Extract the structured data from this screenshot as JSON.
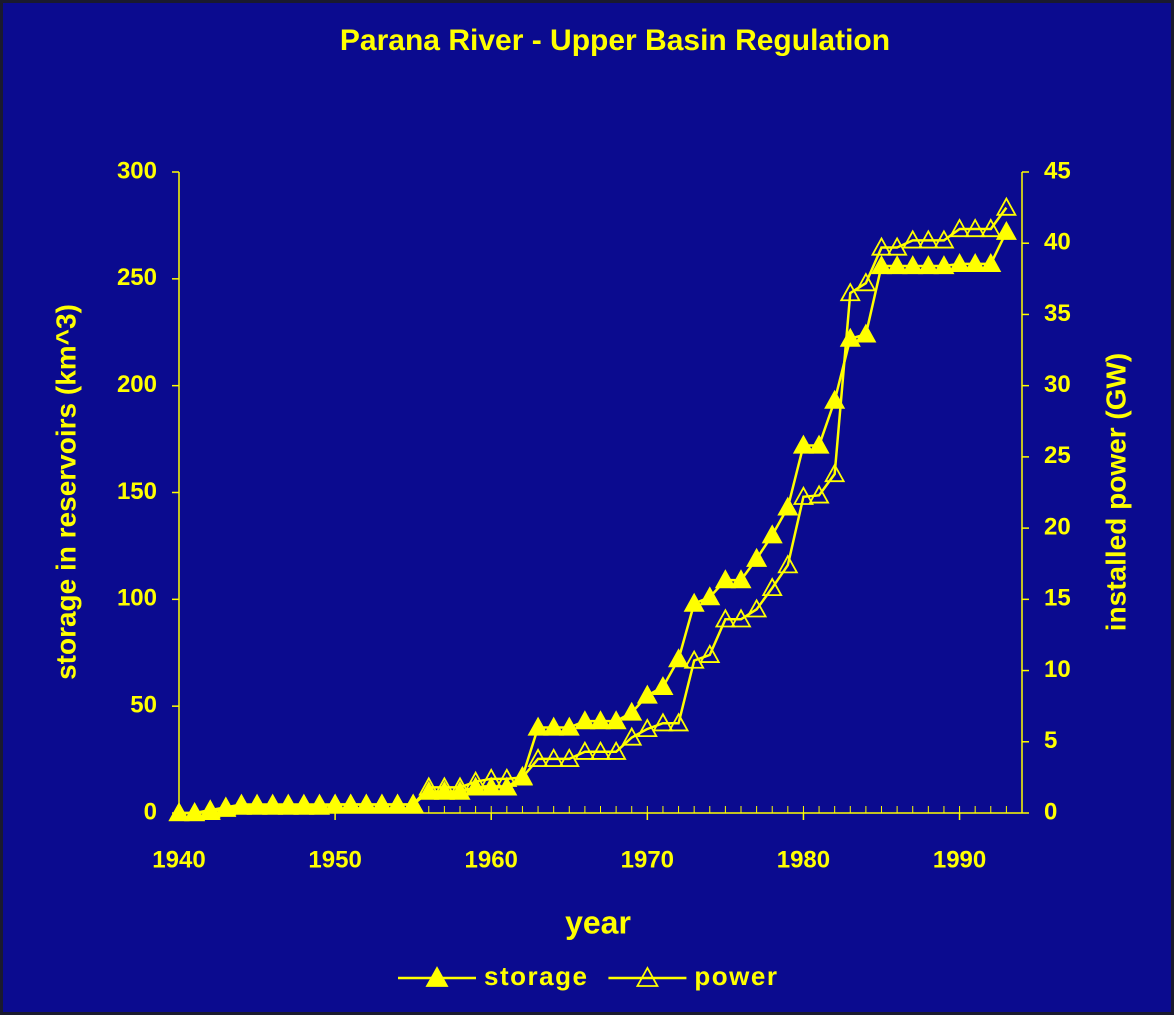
{
  "chart_data": {
    "type": "line",
    "title": "Parana River  -  Upper Basin Regulation",
    "x_label": "year",
    "y_label": "storage in reservoirs (km^3)",
    "y2_label": "installed power (GW)",
    "x": [
      1940,
      1941,
      1942,
      1943,
      1944,
      1945,
      1946,
      1947,
      1948,
      1949,
      1950,
      1951,
      1952,
      1953,
      1954,
      1955,
      1956,
      1957,
      1958,
      1959,
      1960,
      1961,
      1962,
      1963,
      1964,
      1965,
      1966,
      1967,
      1968,
      1969,
      1970,
      1971,
      1972,
      1973,
      1974,
      1975,
      1976,
      1977,
      1978,
      1979,
      1980,
      1981,
      1982,
      1983,
      1984,
      1985,
      1986,
      1987,
      1988,
      1989,
      1990,
      1991,
      1992,
      1993
    ],
    "series": [
      {
        "name": "storage",
        "color": "#ffff00",
        "marker": "filled-triangle",
        "values": [
          0,
          0,
          0.5,
          2,
          3,
          3,
          3,
          3,
          3,
          3,
          4,
          4,
          4,
          4,
          4,
          4,
          10,
          10,
          10,
          12,
          12,
          12,
          17,
          40,
          40,
          40,
          43,
          43,
          43,
          47,
          55,
          59,
          72,
          98,
          101,
          109,
          109,
          119,
          130,
          143,
          172,
          172,
          193,
          222,
          224,
          256,
          256,
          256,
          256,
          256,
          257,
          257,
          257,
          272
        ]
      },
      {
        "name": "power",
        "color": "#ffff00",
        "marker": "open-triangle",
        "axis": "y2",
        "values": [
          0,
          0,
          0.2,
          0.4,
          0.6,
          0.6,
          0.6,
          0.6,
          0.6,
          0.6,
          0.6,
          0.6,
          0.6,
          0.6,
          0.6,
          0.6,
          1.8,
          1.8,
          1.8,
          2.2,
          2.4,
          2.4,
          2.5,
          3.8,
          3.8,
          3.8,
          4.3,
          4.3,
          4.3,
          5.3,
          5.9,
          6.3,
          6.3,
          10.7,
          11.1,
          13.6,
          13.6,
          14.3,
          15.8,
          17.4,
          22.2,
          22.3,
          23.8,
          36.5,
          37.2,
          39.7,
          39.7,
          40.2,
          40.2,
          40.2,
          41,
          41,
          41,
          42.5
        ]
      }
    ],
    "xlim": [
      1940,
      1994
    ],
    "xticks": [
      1940,
      1950,
      1960,
      1970,
      1980,
      1990
    ],
    "ylim": [
      0,
      300
    ],
    "yticks": [
      0,
      50,
      100,
      150,
      200,
      250,
      300
    ],
    "y2lim": [
      0,
      45
    ],
    "y2ticks": [
      0,
      5,
      10,
      15,
      20,
      25,
      30,
      35,
      40,
      45
    ],
    "grid": false,
    "legend": "bottom"
  }
}
